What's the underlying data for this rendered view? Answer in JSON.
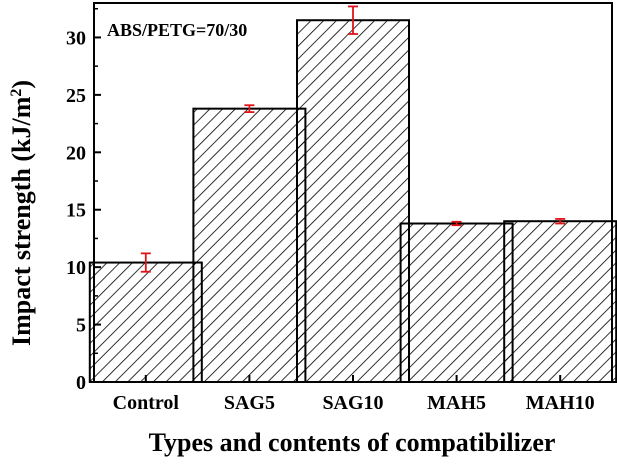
{
  "chart_data": {
    "type": "bar",
    "annotation": "ABS/PETG=70/30",
    "categories": [
      "Control",
      "SAG5",
      "SAG10",
      "MAH5",
      "MAH10"
    ],
    "values": [
      10.4,
      23.8,
      31.5,
      13.8,
      14.0
    ],
    "errors": [
      0.8,
      0.3,
      1.2,
      0.15,
      0.2
    ],
    "xlabel": "Types and contents of compatibilizer",
    "ylabel_main": "Impact strength (kJ/m",
    "ylabel_sup": "2",
    "ylabel_end": ")",
    "ylim": [
      0,
      33
    ],
    "yticks": [
      0,
      5,
      10,
      15,
      20,
      25,
      30
    ],
    "bar_fill": "hatched",
    "error_color": "#e0151b",
    "grid": false,
    "legend": "none"
  }
}
